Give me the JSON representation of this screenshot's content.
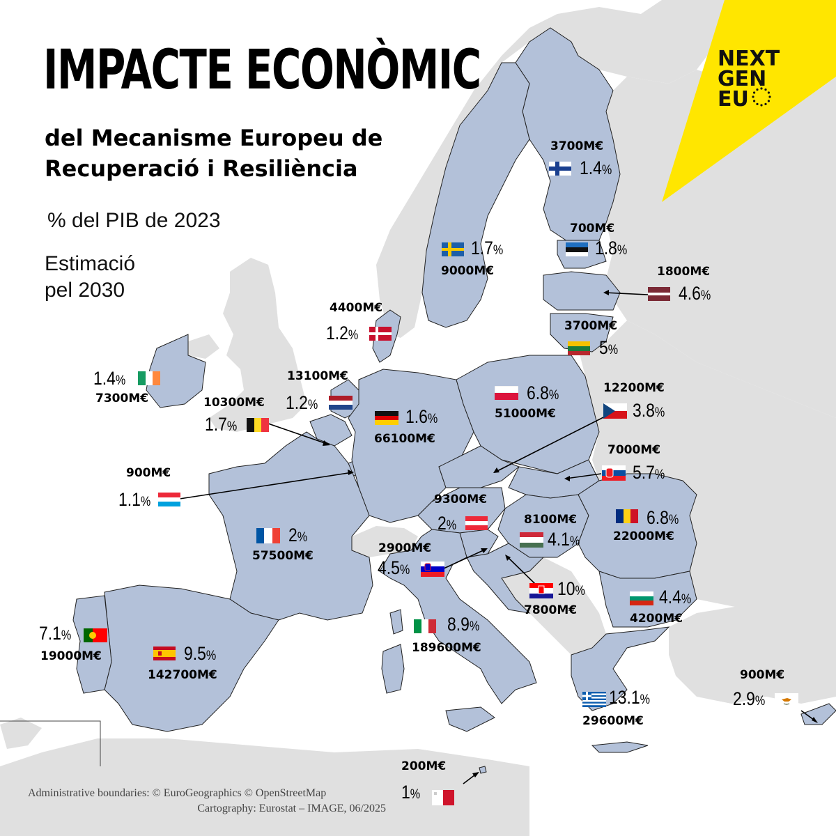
{
  "title": "IMPACTE ECONÒMIC",
  "subtitle_line1": "del Mecanisme Europeu de",
  "subtitle_line2": "Recuperació i Resiliència",
  "unit_label": "% del PIB de 2023",
  "note_line1": "Estimació",
  "note_line2": "pel 2030",
  "logo": {
    "line1": "NEXT",
    "line2": "GEN",
    "line3": "EU"
  },
  "credits": {
    "line1": "Administrative boundaries: © EuroGeographics © OpenStreetMap",
    "line2": "Cartography: Eurostat – IMAGE, 06/2025"
  },
  "colors": {
    "eu_fill": "#b3c1d9",
    "non_eu_fill": "#e0e0e0",
    "sea": "#ffffff",
    "border": "#222222",
    "logo_yellow": "#ffe600"
  },
  "countries": {
    "fi": {
      "name": "Finland",
      "amount": "3700M€",
      "pct": "1.4",
      "flag": "finland-flag"
    },
    "se": {
      "name": "Sweden",
      "amount": "9000M€",
      "pct": "1.7",
      "flag": "sweden-flag"
    },
    "ee": {
      "name": "Estonia",
      "amount": "700M€",
      "pct": "1.8",
      "flag": "estonia-flag"
    },
    "lv": {
      "name": "Latvia",
      "amount": "1800M€",
      "pct": "4.6",
      "flag": "latvia-flag"
    },
    "lt": {
      "name": "Lithuania",
      "amount": "3700M€",
      "pct": "5",
      "flag": "lithuania-flag"
    },
    "dk": {
      "name": "Denmark",
      "amount": "4400M€",
      "pct": "1.2",
      "flag": "denmark-flag"
    },
    "ie": {
      "name": "Ireland",
      "amount": "7300M€",
      "pct": "1.4",
      "flag": "ireland-flag"
    },
    "nl": {
      "name": "Netherlands",
      "amount": "13100M€",
      "pct": "1.2",
      "flag": "netherlands-flag"
    },
    "be": {
      "name": "Belgium",
      "amount": "10300M€",
      "pct": "1.7",
      "flag": "belgium-flag"
    },
    "de": {
      "name": "Germany",
      "amount": "66100M€",
      "pct": "1.6",
      "flag": "germany-flag"
    },
    "pl": {
      "name": "Poland",
      "amount": "51000M€",
      "pct": "6.8",
      "flag": "poland-flag"
    },
    "cz": {
      "name": "Czechia",
      "amount": "12200M€",
      "pct": "3.8",
      "flag": "czechia-flag"
    },
    "lu": {
      "name": "Luxembourg",
      "amount": "900M€",
      "pct": "1.1",
      "flag": "luxembourg-flag"
    },
    "sk": {
      "name": "Slovakia",
      "amount": "7000M€",
      "pct": "5.7",
      "flag": "slovakia-flag"
    },
    "at": {
      "name": "Austria",
      "amount": "9300M€",
      "pct": "2",
      "flag": "austria-flag"
    },
    "fr": {
      "name": "France",
      "amount": "57500M€",
      "pct": "2",
      "flag": "france-flag"
    },
    "hu": {
      "name": "Hungary",
      "amount": "8100M€",
      "pct": "4.1",
      "flag": "hungary-flag"
    },
    "ro": {
      "name": "Romania",
      "amount": "22000M€",
      "pct": "6.8",
      "flag": "romania-flag"
    },
    "si": {
      "name": "Slovenia",
      "amount": "2900M€",
      "pct": "4.5",
      "flag": "slovenia-flag"
    },
    "hr": {
      "name": "Croatia",
      "amount": "7800M€",
      "pct": "10",
      "flag": "croatia-flag"
    },
    "bg": {
      "name": "Bulgaria",
      "amount": "4200M€",
      "pct": "4.4",
      "flag": "bulgaria-flag"
    },
    "pt": {
      "name": "Portugal",
      "amount": "19000M€",
      "pct": "7.1",
      "flag": "portugal-flag"
    },
    "es": {
      "name": "Spain",
      "amount": "142700M€",
      "pct": "9.5",
      "flag": "spain-flag"
    },
    "it": {
      "name": "Italy",
      "amount": "189600M€",
      "pct": "8.9",
      "flag": "italy-flag"
    },
    "gr": {
      "name": "Greece",
      "amount": "29600M€",
      "pct": "13.1",
      "flag": "greece-flag"
    },
    "cy": {
      "name": "Cyprus",
      "amount": "900M€",
      "pct": "2.9",
      "flag": "cyprus-flag"
    },
    "mt": {
      "name": "Malta",
      "amount": "200M€",
      "pct": "1",
      "flag": "malta-flag"
    }
  },
  "pct_sign": "%"
}
